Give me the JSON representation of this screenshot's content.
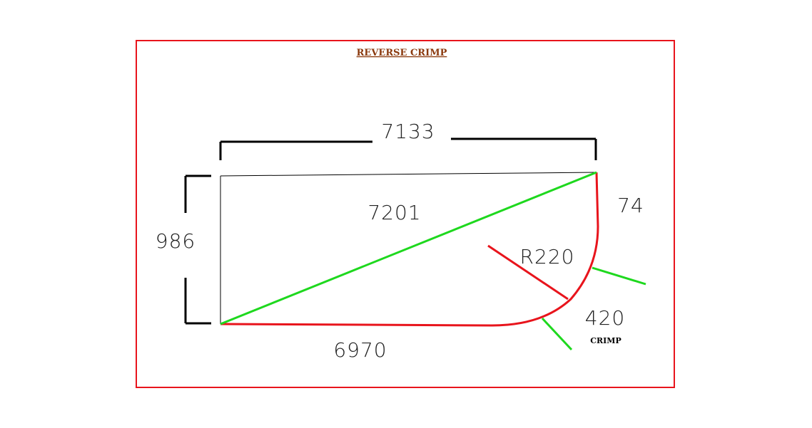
{
  "title": "REVERSE  CRIMP",
  "dimensions": {
    "top_width": "7133",
    "diagonal": "7201",
    "left_height": "986",
    "right_edge": "74",
    "radius": "R220",
    "crimp_length": "420",
    "bottom_length": "6970"
  },
  "crimp_label": "CRIMP",
  "colors": {
    "frame": "#e8141c",
    "outline_black": "#000000",
    "edge_red": "#e8141c",
    "diagonal_green": "#1ed81e",
    "title_brown": "#8b3a0f"
  }
}
